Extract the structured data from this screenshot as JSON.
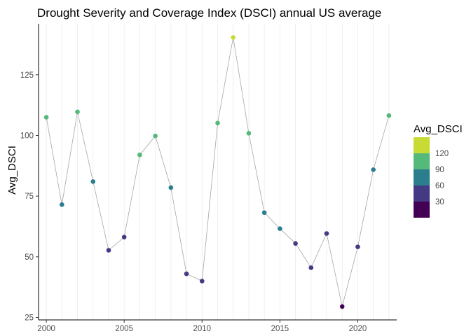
{
  "chart_data": {
    "type": "scatter",
    "title": "Drought Severity and Coverage Index (DSCI) annual US average",
    "xlabel": "",
    "ylabel": "Avg_DSCI",
    "xlim": [
      1999.5,
      2022.5
    ],
    "ylim": [
      24,
      146
    ],
    "xticks": [
      2000,
      2005,
      2010,
      2015,
      2020
    ],
    "yticks": [
      25,
      50,
      75,
      100,
      125
    ],
    "grid": "vertical minor lines at each year",
    "connect_points": true,
    "line_color": "#a6a6a6",
    "series": [
      {
        "x": [
          2000,
          2001,
          2002,
          2003,
          2004,
          2005,
          2006,
          2007,
          2008,
          2009,
          2010,
          2011,
          2012,
          2013,
          2014,
          2015,
          2016,
          2017,
          2018,
          2019,
          2020,
          2021,
          2022
        ],
        "values": [
          107.5,
          71.5,
          109.7,
          81.0,
          52.7,
          58.1,
          92.0,
          99.8,
          78.5,
          43.0,
          40.0,
          105.1,
          140.4,
          100.9,
          68.2,
          61.6,
          55.5,
          45.5,
          59.6,
          29.5,
          54.1,
          85.9,
          108.2
        ]
      }
    ],
    "legend": {
      "title": "Avg_DSCI",
      "position": "right",
      "labels": [
        "120",
        "90",
        "60",
        "30"
      ],
      "bins": [
        {
          "upper": 150,
          "color": "#c8db34"
        },
        {
          "upper": 120,
          "color": "#55b97a"
        },
        {
          "upper": 90,
          "color": "#2a7e8d"
        },
        {
          "upper": 60,
          "color": "#443983"
        },
        {
          "upper": 30,
          "color": "#440154"
        }
      ]
    }
  }
}
